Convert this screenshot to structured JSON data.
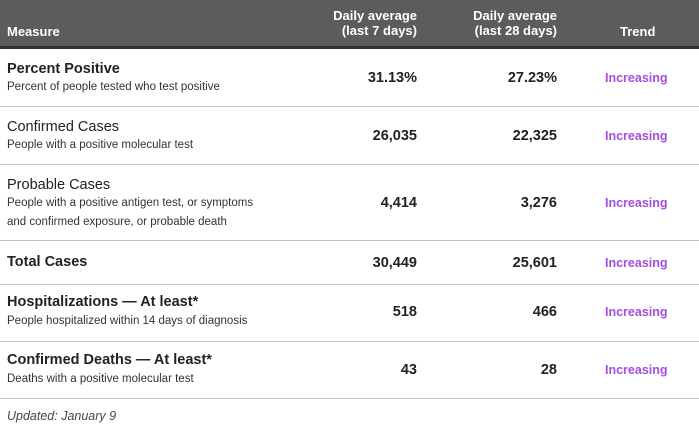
{
  "header": {
    "measure": "Measure",
    "col7_line1": "Daily average",
    "col7_line2": "(last 7 days)",
    "col28_line1": "Daily average",
    "col28_line2": "(last 28 days)",
    "trend": "Trend"
  },
  "rows": [
    {
      "title": "Percent Positive",
      "subtitle": "Percent of people tested who test positive",
      "avg7": "31.13%",
      "avg28": "27.23%",
      "trend": "Increasing"
    },
    {
      "title": "Confirmed Cases",
      "subtitle": "People with a positive molecular test",
      "avg7": "26,035",
      "avg28": "22,325",
      "trend": "Increasing"
    },
    {
      "title": "Probable Cases",
      "subtitle_line1": "People with a positive antigen test, or symptoms",
      "subtitle_line2": "and confirmed exposure, or probable death",
      "avg7": "4,414",
      "avg28": "3,276",
      "trend": "Increasing"
    },
    {
      "title": "Total Cases",
      "avg7": "30,449",
      "avg28": "25,601",
      "trend": "Increasing"
    },
    {
      "title": "Hospitalizations — At least*",
      "subtitle": "People hospitalized within 14 days of diagnosis",
      "avg7": "518",
      "avg28": "466",
      "trend": "Increasing"
    },
    {
      "title": "Confirmed Deaths — At least*",
      "subtitle": "Deaths with a positive molecular test",
      "avg7": "43",
      "avg28": "28",
      "trend": "Increasing"
    }
  ],
  "updated": "Updated: January 9",
  "colors": {
    "header_bg": "#5c5c5c",
    "trend_increasing": "#a34ee0"
  }
}
